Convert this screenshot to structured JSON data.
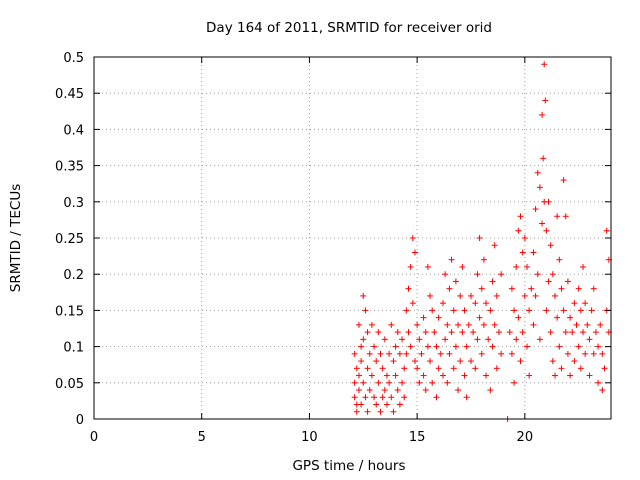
{
  "chart_data": {
    "type": "scatter",
    "title": "Day 164 of 2011, SRMTID for receiver orid",
    "xlabel": "GPS time / hours",
    "ylabel": "SRMTID / TECUs",
    "xlim": [
      0,
      24
    ],
    "ylim": [
      0,
      0.5
    ],
    "xticks": [
      "0",
      "5",
      "10",
      "15",
      "20"
    ],
    "yticks": [
      "0",
      "0.05",
      "0.1",
      "0.15",
      "0.2",
      "0.25",
      "0.3",
      "0.35",
      "0.4",
      "0.45",
      "0.5"
    ],
    "grid": true,
    "marker": "plus",
    "color": "#ff0000",
    "series": [
      {
        "points": [
          [
            12.1,
            0.09
          ],
          [
            12.1,
            0.05
          ],
          [
            12.1,
            0.03
          ],
          [
            12.2,
            0.07
          ],
          [
            12.2,
            0.02
          ],
          [
            12.2,
            0.01
          ],
          [
            12.3,
            0.13
          ],
          [
            12.3,
            0.06
          ],
          [
            12.3,
            0.04
          ],
          [
            12.4,
            0.1
          ],
          [
            12.4,
            0.08
          ],
          [
            12.4,
            0.02
          ],
          [
            12.5,
            0.17
          ],
          [
            12.5,
            0.11
          ],
          [
            12.5,
            0.05
          ],
          [
            12.6,
            0.15
          ],
          [
            12.6,
            0.03
          ],
          [
            12.7,
            0.12
          ],
          [
            12.7,
            0.07
          ],
          [
            12.7,
            0.01
          ],
          [
            12.8,
            0.09
          ],
          [
            12.8,
            0.04
          ],
          [
            12.9,
            0.13
          ],
          [
            12.9,
            0.06
          ],
          [
            13.0,
            0.1
          ],
          [
            13.0,
            0.03
          ],
          [
            13.1,
            0.08
          ],
          [
            13.1,
            0.02
          ],
          [
            13.2,
            0.12
          ],
          [
            13.2,
            0.05
          ],
          [
            13.3,
            0.09
          ],
          [
            13.3,
            0.01
          ],
          [
            13.4,
            0.07
          ],
          [
            13.4,
            0.03
          ],
          [
            13.5,
            0.11
          ],
          [
            13.5,
            0.04
          ],
          [
            13.6,
            0.06
          ],
          [
            13.6,
            0.02
          ],
          [
            13.7,
            0.09
          ],
          [
            13.7,
            0.05
          ],
          [
            13.8,
            0.13
          ],
          [
            13.8,
            0.03
          ],
          [
            13.9,
            0.08
          ],
          [
            13.9,
            0.01
          ],
          [
            14.0,
            0.1
          ],
          [
            14.0,
            0.06
          ],
          [
            14.1,
            0.12
          ],
          [
            14.1,
            0.04
          ],
          [
            14.2,
            0.09
          ],
          [
            14.2,
            0.02
          ],
          [
            14.3,
            0.11
          ],
          [
            14.3,
            0.05
          ],
          [
            14.4,
            0.07
          ],
          [
            14.4,
            0.03
          ],
          [
            14.5,
            0.15
          ],
          [
            14.5,
            0.09
          ],
          [
            14.6,
            0.18
          ],
          [
            14.6,
            0.12
          ],
          [
            14.7,
            0.21
          ],
          [
            14.7,
            0.1
          ],
          [
            14.8,
            0.25
          ],
          [
            14.8,
            0.16
          ],
          [
            14.9,
            0.23
          ],
          [
            14.9,
            0.08
          ],
          [
            15.0,
            0.13
          ],
          [
            15.0,
            0.07
          ],
          [
            15.1,
            0.11
          ],
          [
            15.1,
            0.05
          ],
          [
            15.2,
            0.09
          ],
          [
            15.3,
            0.14
          ],
          [
            15.3,
            0.06
          ],
          [
            15.4,
            0.12
          ],
          [
            15.4,
            0.04
          ],
          [
            15.5,
            0.21
          ],
          [
            15.5,
            0.1
          ],
          [
            15.6,
            0.17
          ],
          [
            15.6,
            0.08
          ],
          [
            15.7,
            0.15
          ],
          [
            15.7,
            0.05
          ],
          [
            15.8,
            0.12
          ],
          [
            15.9,
            0.1
          ],
          [
            15.9,
            0.03
          ],
          [
            16.0,
            0.14
          ],
          [
            16.0,
            0.07
          ],
          [
            16.1,
            0.09
          ],
          [
            16.2,
            0.16
          ],
          [
            16.2,
            0.06
          ],
          [
            16.3,
            0.2
          ],
          [
            16.3,
            0.11
          ],
          [
            16.4,
            0.13
          ],
          [
            16.4,
            0.05
          ],
          [
            16.5,
            0.18
          ],
          [
            16.5,
            0.09
          ],
          [
            16.6,
            0.22
          ],
          [
            16.6,
            0.12
          ],
          [
            16.7,
            0.15
          ],
          [
            16.7,
            0.07
          ],
          [
            16.8,
            0.19
          ],
          [
            16.8,
            0.1
          ],
          [
            16.9,
            0.13
          ],
          [
            16.9,
            0.04
          ],
          [
            17.0,
            0.17
          ],
          [
            17.0,
            0.08
          ],
          [
            17.1,
            0.21
          ],
          [
            17.1,
            0.12
          ],
          [
            17.2,
            0.15
          ],
          [
            17.2,
            0.06
          ],
          [
            17.3,
            0.1
          ],
          [
            17.3,
            0.03
          ],
          [
            17.4,
            0.13
          ],
          [
            17.5,
            0.17
          ],
          [
            17.5,
            0.08
          ],
          [
            17.6,
            0.12
          ],
          [
            17.7,
            0.16
          ],
          [
            17.7,
            0.07
          ],
          [
            17.8,
            0.2
          ],
          [
            17.8,
            0.11
          ],
          [
            17.9,
            0.25
          ],
          [
            17.9,
            0.14
          ],
          [
            18.0,
            0.18
          ],
          [
            18.0,
            0.09
          ],
          [
            18.1,
            0.22
          ],
          [
            18.1,
            0.13
          ],
          [
            18.2,
            0.16
          ],
          [
            18.2,
            0.06
          ],
          [
            18.3,
            0.11
          ],
          [
            18.4,
            0.15
          ],
          [
            18.4,
            0.04
          ],
          [
            18.5,
            0.19
          ],
          [
            18.5,
            0.1
          ],
          [
            18.6,
            0.24
          ],
          [
            18.6,
            0.13
          ],
          [
            18.7,
            0.17
          ],
          [
            18.7,
            0.07
          ],
          [
            18.8,
            0.12
          ],
          [
            18.9,
            0.2
          ],
          [
            18.9,
            0.09
          ],
          [
            19.2,
            0.0
          ],
          [
            19.3,
            0.12
          ],
          [
            19.4,
            0.18
          ],
          [
            19.4,
            0.09
          ],
          [
            19.5,
            0.15
          ],
          [
            19.5,
            0.05
          ],
          [
            19.6,
            0.21
          ],
          [
            19.6,
            0.11
          ],
          [
            19.7,
            0.26
          ],
          [
            19.7,
            0.14
          ],
          [
            19.8,
            0.28
          ],
          [
            19.8,
            0.08
          ],
          [
            19.9,
            0.23
          ],
          [
            19.9,
            0.12
          ],
          [
            20.0,
            0.25
          ],
          [
            20.0,
            0.17
          ],
          [
            20.1,
            0.21
          ],
          [
            20.1,
            0.1
          ],
          [
            20.2,
            0.15
          ],
          [
            20.2,
            0.06
          ],
          [
            20.3,
            0.18
          ],
          [
            20.4,
            0.23
          ],
          [
            20.4,
            0.13
          ],
          [
            20.5,
            0.29
          ],
          [
            20.5,
            0.17
          ],
          [
            20.6,
            0.34
          ],
          [
            20.6,
            0.2
          ],
          [
            20.7,
            0.32
          ],
          [
            20.7,
            0.11
          ],
          [
            20.8,
            0.42
          ],
          [
            20.8,
            0.27
          ],
          [
            20.85,
            0.36
          ],
          [
            20.9,
            0.49
          ],
          [
            20.9,
            0.3
          ],
          [
            20.95,
            0.44
          ],
          [
            21.0,
            0.26
          ],
          [
            21.0,
            0.15
          ],
          [
            21.1,
            0.3
          ],
          [
            21.1,
            0.19
          ],
          [
            21.2,
            0.24
          ],
          [
            21.2,
            0.12
          ],
          [
            21.3,
            0.2
          ],
          [
            21.3,
            0.08
          ],
          [
            21.4,
            0.17
          ],
          [
            21.4,
            0.06
          ],
          [
            21.5,
            0.28
          ],
          [
            21.5,
            0.14
          ],
          [
            21.6,
            0.22
          ],
          [
            21.6,
            0.1
          ],
          [
            21.7,
            0.18
          ],
          [
            21.7,
            0.07
          ],
          [
            21.8,
            0.33
          ],
          [
            21.8,
            0.15
          ],
          [
            21.9,
            0.28
          ],
          [
            21.9,
            0.12
          ],
          [
            22.0,
            0.19
          ],
          [
            22.0,
            0.09
          ],
          [
            22.1,
            0.14
          ],
          [
            22.1,
            0.06
          ],
          [
            22.2,
            0.12
          ],
          [
            22.3,
            0.16
          ],
          [
            22.3,
            0.08
          ],
          [
            22.4,
            0.13
          ],
          [
            22.5,
            0.18
          ],
          [
            22.5,
            0.1
          ],
          [
            22.6,
            0.15
          ],
          [
            22.6,
            0.07
          ],
          [
            22.7,
            0.21
          ],
          [
            22.7,
            0.12
          ],
          [
            22.8,
            0.16
          ],
          [
            22.8,
            0.09
          ],
          [
            22.9,
            0.13
          ],
          [
            23.0,
            0.11
          ],
          [
            23.0,
            0.06
          ],
          [
            23.1,
            0.15
          ],
          [
            23.2,
            0.18
          ],
          [
            23.2,
            0.09
          ],
          [
            23.3,
            0.12
          ],
          [
            23.4,
            0.1
          ],
          [
            23.4,
            0.05
          ],
          [
            23.5,
            0.13
          ],
          [
            23.6,
            0.09
          ],
          [
            23.6,
            0.04
          ],
          [
            23.7,
            0.07
          ],
          [
            23.8,
            0.15
          ],
          [
            23.8,
            0.26
          ],
          [
            23.9,
            0.22
          ],
          [
            23.9,
            0.12
          ]
        ]
      }
    ]
  }
}
